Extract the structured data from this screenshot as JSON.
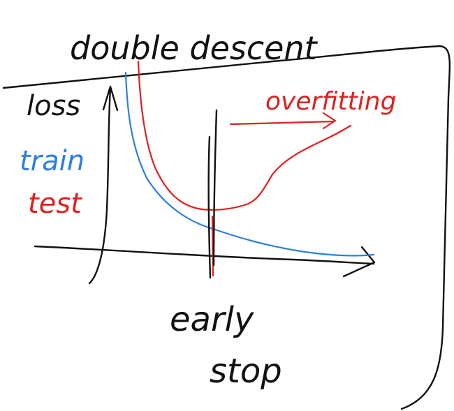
{
  "title": "double descent",
  "y_axis_label": "loss",
  "legend": {
    "train": "train",
    "test": "test"
  },
  "annotation_overfitting": "overfitting",
  "annotation_early_stop_line1": "early",
  "annotation_early_stop_line2": "stop",
  "colors": {
    "ink": "#111111",
    "train": "#2e7fe0",
    "test": "#e0201e"
  }
}
